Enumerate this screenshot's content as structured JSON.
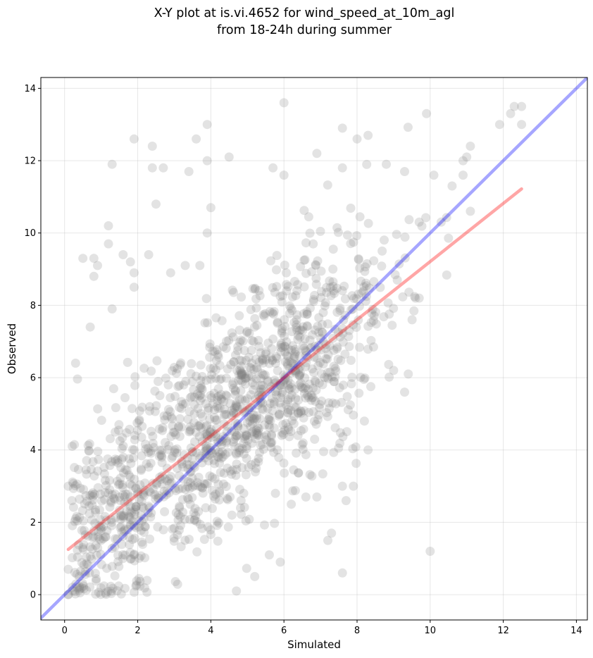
{
  "chart_data": {
    "type": "scatter",
    "title": [
      "X-Y plot at is.vi.4652 for wind_speed_at_10m_agl",
      "from 18-24h during summer"
    ],
    "xlabel": "Simulated",
    "ylabel": "Observed",
    "xlim": [
      -0.65,
      14.3
    ],
    "ylim": [
      -0.7,
      14.3
    ],
    "xticks": [
      0,
      2,
      4,
      6,
      8,
      10,
      12,
      14
    ],
    "yticks": [
      0,
      2,
      4,
      6,
      8,
      10,
      12,
      14
    ],
    "grid": true,
    "point_color": "#808080",
    "point_alpha": 0.22,
    "lines": [
      {
        "role": "one-to-one",
        "color": "#0000ff",
        "alpha": 0.35,
        "x": [
          -0.65,
          14.3
        ],
        "y": [
          -0.65,
          14.3
        ]
      },
      {
        "role": "regression",
        "color": "#ff0000",
        "alpha": 0.35,
        "x": [
          0.1,
          12.5
        ],
        "y": [
          1.25,
          11.22
        ]
      }
    ],
    "random_seed": 4652,
    "random_point_count": 1400,
    "points": [
      {
        "x": 0.3,
        "y": 6.4
      },
      {
        "x": 0.5,
        "y": 9.3
      },
      {
        "x": 0.8,
        "y": 9.3
      },
      {
        "x": 0.9,
        "y": 9.1
      },
      {
        "x": 0.8,
        "y": 8.8
      },
      {
        "x": 1.3,
        "y": 11.9
      },
      {
        "x": 1.2,
        "y": 10.2
      },
      {
        "x": 1.2,
        "y": 9.7
      },
      {
        "x": 1.3,
        "y": 7.9
      },
      {
        "x": 0.7,
        "y": 7.4
      },
      {
        "x": 1.9,
        "y": 12.6
      },
      {
        "x": 2.4,
        "y": 12.4
      },
      {
        "x": 2.4,
        "y": 11.8
      },
      {
        "x": 2.7,
        "y": 11.8
      },
      {
        "x": 2.5,
        "y": 10.8
      },
      {
        "x": 3.4,
        "y": 11.7
      },
      {
        "x": 3.6,
        "y": 12.6
      },
      {
        "x": 3.9,
        "y": 13.0
      },
      {
        "x": 3.9,
        "y": 12.0
      },
      {
        "x": 4.5,
        "y": 12.1
      },
      {
        "x": 4.0,
        "y": 10.7
      },
      {
        "x": 3.9,
        "y": 10.0
      },
      {
        "x": 1.6,
        "y": 9.4
      },
      {
        "x": 1.8,
        "y": 9.2
      },
      {
        "x": 1.9,
        "y": 8.9
      },
      {
        "x": 1.9,
        "y": 8.5
      },
      {
        "x": 2.3,
        "y": 9.4
      },
      {
        "x": 2.9,
        "y": 8.9
      },
      {
        "x": 3.3,
        "y": 9.1
      },
      {
        "x": 3.7,
        "y": 9.1
      },
      {
        "x": 6.0,
        "y": 13.6
      },
      {
        "x": 5.7,
        "y": 11.8
      },
      {
        "x": 6.0,
        "y": 11.6
      },
      {
        "x": 7.6,
        "y": 12.9
      },
      {
        "x": 8.0,
        "y": 12.6
      },
      {
        "x": 8.3,
        "y": 12.7
      },
      {
        "x": 6.9,
        "y": 12.2
      },
      {
        "x": 7.6,
        "y": 11.8
      },
      {
        "x": 8.8,
        "y": 11.9
      },
      {
        "x": 9.3,
        "y": 11.7
      },
      {
        "x": 9.9,
        "y": 13.3
      },
      {
        "x": 10.1,
        "y": 11.6
      },
      {
        "x": 10.6,
        "y": 11.3
      },
      {
        "x": 10.9,
        "y": 12.0
      },
      {
        "x": 11.0,
        "y": 12.1
      },
      {
        "x": 11.1,
        "y": 12.4
      },
      {
        "x": 10.9,
        "y": 11.6
      },
      {
        "x": 11.9,
        "y": 13.0
      },
      {
        "x": 12.2,
        "y": 13.3
      },
      {
        "x": 12.3,
        "y": 13.5
      },
      {
        "x": 12.5,
        "y": 13.5
      },
      {
        "x": 12.5,
        "y": 13.0
      },
      {
        "x": 11.1,
        "y": 10.6
      },
      {
        "x": 10.3,
        "y": 10.3
      },
      {
        "x": 9.7,
        "y": 10.3
      },
      {
        "x": 10.0,
        "y": 1.2
      },
      {
        "x": 8.3,
        "y": 4.0
      },
      {
        "x": 8.2,
        "y": 4.8
      },
      {
        "x": 7.6,
        "y": 0.6
      },
      {
        "x": 7.2,
        "y": 1.5
      },
      {
        "x": 7.3,
        "y": 1.7
      },
      {
        "x": 7.7,
        "y": 2.6
      },
      {
        "x": 7.6,
        "y": 3.0
      },
      {
        "x": 7.9,
        "y": 3.0
      },
      {
        "x": 9.3,
        "y": 5.6
      },
      {
        "x": 9.4,
        "y": 6.1
      },
      {
        "x": 9.0,
        "y": 6.2
      },
      {
        "x": 9.6,
        "y": 8.2
      },
      {
        "x": 9.7,
        "y": 8.2
      },
      {
        "x": 9.1,
        "y": 8.7
      },
      {
        "x": 0.1,
        "y": 0.0
      },
      {
        "x": 0.1,
        "y": 3.0
      },
      {
        "x": 0.2,
        "y": 2.6
      },
      {
        "x": 0.3,
        "y": 2.1
      },
      {
        "x": 0.1,
        "y": 0.7
      },
      {
        "x": 0.4,
        "y": 0.5
      },
      {
        "x": 5.6,
        "y": 1.1
      },
      {
        "x": 5.9,
        "y": 0.9
      },
      {
        "x": 5.2,
        "y": 0.5
      },
      {
        "x": 4.7,
        "y": 0.1
      },
      {
        "x": 6.2,
        "y": 2.5
      },
      {
        "x": 6.6,
        "y": 2.7
      },
      {
        "x": 6.9,
        "y": 2.7
      },
      {
        "x": 4.9,
        "y": 2.8
      }
    ]
  }
}
